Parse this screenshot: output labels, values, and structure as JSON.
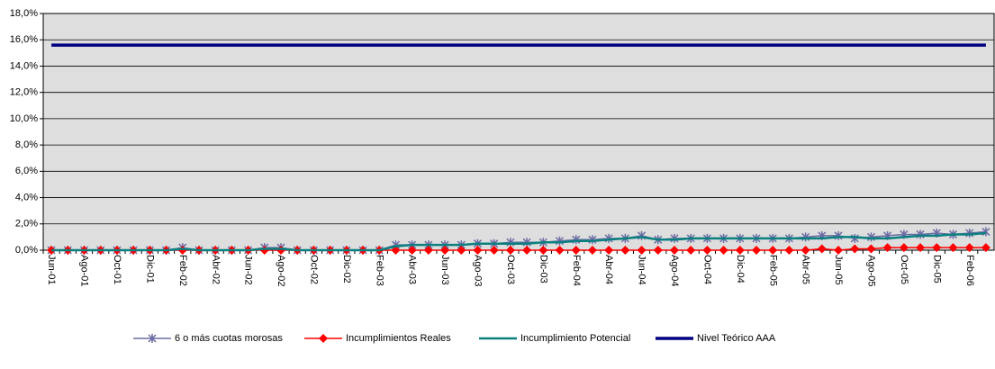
{
  "chart_data": {
    "type": "line",
    "categories": [
      "Jun-01",
      null,
      "Ago-01",
      null,
      "Oct-01",
      null,
      "Dic-01",
      null,
      "Feb-02",
      null,
      "Abr-02",
      null,
      "Jun-02",
      null,
      "Ago-02",
      null,
      "Oct-02",
      null,
      "Dic-02",
      null,
      "Feb-03",
      null,
      "Abr-03",
      null,
      "Jun-03",
      null,
      "Ago-03",
      null,
      "Oct-03",
      null,
      "Dic-03",
      null,
      "Feb-04",
      null,
      "Abr-04",
      null,
      "Jun-04",
      null,
      "Ago-04",
      null,
      "Oct-04",
      null,
      "Dic-04",
      null,
      "Feb-05",
      null,
      "Abr-05",
      null,
      "Jun-05",
      null,
      "Ago-05",
      null,
      "Oct-05",
      null,
      "Dic-05",
      null,
      "Feb-06",
      null
    ],
    "series": [
      {
        "name": "6 o más cuotas morosas",
        "color": "#6b6ba3",
        "marker": "star",
        "values": [
          0,
          0,
          0,
          0,
          0,
          0,
          0,
          0,
          0.2,
          0,
          0,
          0,
          0,
          0.2,
          0.2,
          0,
          0,
          0,
          0,
          0,
          0,
          0.4,
          0.4,
          0.4,
          0.4,
          0.4,
          0.5,
          0.5,
          0.6,
          0.6,
          0.6,
          0.7,
          0.8,
          0.8,
          0.9,
          0.9,
          1.1,
          0.8,
          0.9,
          0.9,
          0.9,
          0.9,
          0.9,
          0.9,
          0.9,
          0.9,
          1.0,
          1.1,
          1.1,
          0.9,
          1.0,
          1.1,
          1.2,
          1.2,
          1.3,
          1.2,
          1.3,
          1.4
        ]
      },
      {
        "name": "Incumplimientos Reales",
        "color": "#ff0000",
        "marker": "diamond",
        "values": [
          0,
          0,
          0,
          0,
          0,
          0,
          0,
          0,
          0,
          0,
          0,
          0,
          0,
          0,
          0,
          0,
          0,
          0,
          0,
          0,
          0,
          0,
          0,
          0,
          0,
          0,
          0,
          0,
          0,
          0,
          0,
          0,
          0,
          0,
          0,
          0,
          0,
          0,
          0,
          0,
          0,
          0,
          0,
          0,
          0,
          0,
          0,
          0.1,
          0,
          0.1,
          0.1,
          0.2,
          0.2,
          0.2,
          0.2,
          0.2,
          0.2,
          0.2
        ]
      },
      {
        "name": "Incumplimiento Potencial",
        "color": "#0a8080",
        "marker": "none",
        "values": [
          0,
          0,
          0,
          0,
          0,
          0,
          0,
          0,
          0.1,
          0,
          0,
          0,
          0,
          0.1,
          0.1,
          0,
          0,
          0,
          0,
          0,
          0,
          0.3,
          0.4,
          0.4,
          0.4,
          0.4,
          0.5,
          0.5,
          0.5,
          0.5,
          0.6,
          0.6,
          0.7,
          0.7,
          0.8,
          0.9,
          1.0,
          0.8,
          0.8,
          0.9,
          0.9,
          0.9,
          0.9,
          0.9,
          0.9,
          0.9,
          0.9,
          0.9,
          1.0,
          1.0,
          0.9,
          0.9,
          1.0,
          1.1,
          1.1,
          1.2,
          1.2,
          1.3
        ]
      },
      {
        "name": "Nivel Teórico AAA",
        "color": "#000080",
        "marker": "none",
        "values": [
          15.6,
          15.6,
          15.6,
          15.6,
          15.6,
          15.6,
          15.6,
          15.6,
          15.6,
          15.6,
          15.6,
          15.6,
          15.6,
          15.6,
          15.6,
          15.6,
          15.6,
          15.6,
          15.6,
          15.6,
          15.6,
          15.6,
          15.6,
          15.6,
          15.6,
          15.6,
          15.6,
          15.6,
          15.6,
          15.6,
          15.6,
          15.6,
          15.6,
          15.6,
          15.6,
          15.6,
          15.6,
          15.6,
          15.6,
          15.6,
          15.6,
          15.6,
          15.6,
          15.6,
          15.6,
          15.6,
          15.6,
          15.6,
          15.6,
          15.6,
          15.6,
          15.6,
          15.6,
          15.6,
          15.6,
          15.6,
          15.6,
          15.6
        ]
      }
    ],
    "ylim": [
      0,
      18
    ],
    "yticks": [
      {
        "value": 0,
        "label": "0,0%"
      },
      {
        "value": 2,
        "label": "2,0%"
      },
      {
        "value": 4,
        "label": "4,0%"
      },
      {
        "value": 6,
        "label": "6,0%"
      },
      {
        "value": 8,
        "label": "8,0%"
      },
      {
        "value": 10,
        "label": "10,0%"
      },
      {
        "value": 12,
        "label": "12,0%"
      },
      {
        "value": 14,
        "label": "14,0%"
      },
      {
        "value": 16,
        "label": "16,0%"
      },
      {
        "value": 18,
        "label": "18,0%"
      }
    ],
    "grid": true,
    "legend": "bottom"
  }
}
